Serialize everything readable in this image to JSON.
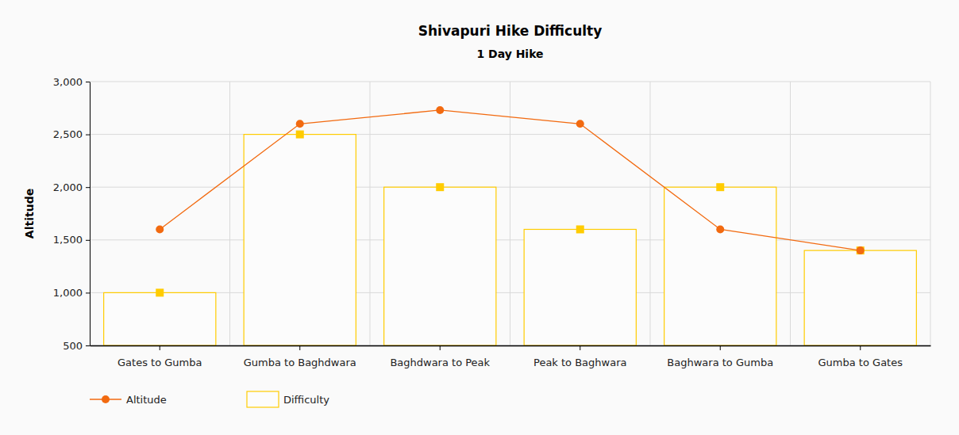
{
  "chart_data": {
    "type": "bar",
    "title": "Shivapuri Hike Difficulty",
    "subtitle": "1 Day Hike",
    "y_label": "Altitude",
    "categories": [
      "Gates to Gumba",
      "Gumba to Baghdwara",
      "Baghdwara to Peak",
      "Peak to Baghwara",
      "Baghwara to Gumba",
      "Gumba to Gates"
    ],
    "series": [
      {
        "name": "Altitude",
        "type": "line",
        "color": "#f26a10",
        "marker": "circle",
        "values": [
          1600,
          2600,
          2730,
          2600,
          1600,
          1400
        ]
      },
      {
        "name": "Difficulty",
        "type": "bar",
        "color": "#ffcc00",
        "marker": "square",
        "values": [
          1000,
          2500,
          2000,
          1600,
          2000,
          1400
        ]
      }
    ],
    "ylim": [
      500,
      3000
    ],
    "yticks": [
      500,
      {
        "value": 1000,
        "label": "1,000"
      },
      {
        "value": 1500,
        "label": "1,500"
      },
      {
        "value": 2000,
        "label": "2,000"
      },
      {
        "value": 2500,
        "label": "2,500"
      },
      {
        "value": 3000,
        "label": "3,000"
      }
    ],
    "grid": true,
    "legend": "bottom-left"
  }
}
